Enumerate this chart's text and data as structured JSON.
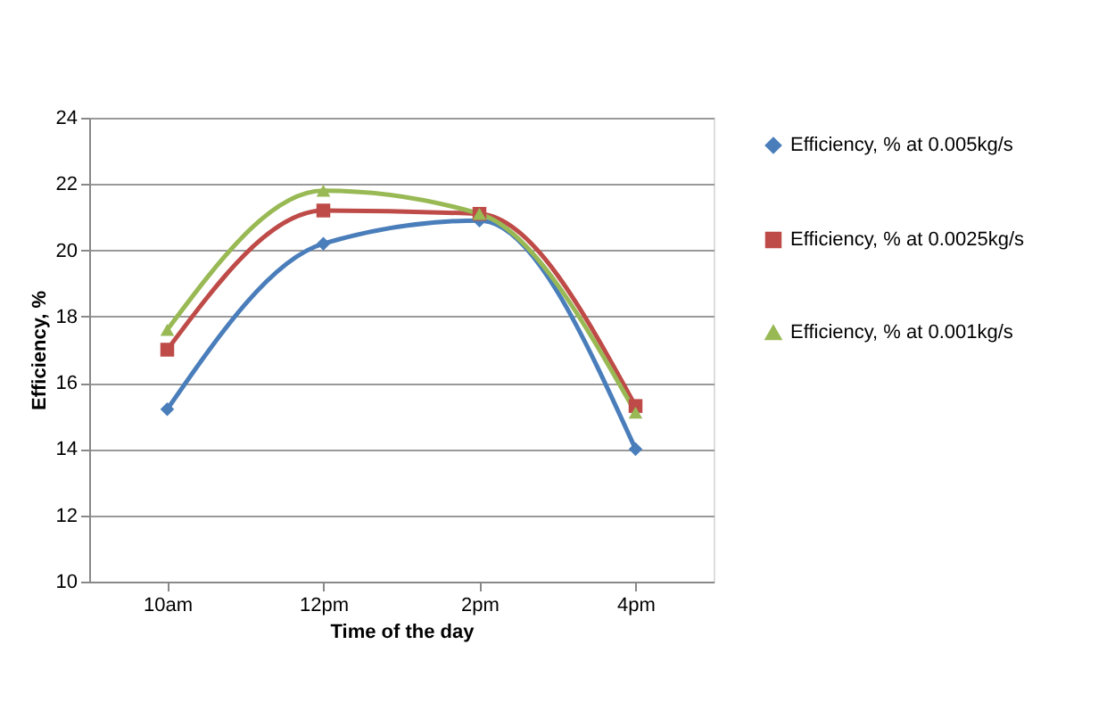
{
  "chart_data": {
    "type": "line",
    "xlabel": "Time of the day",
    "ylabel": "Efficiency, %",
    "categories": [
      "10am",
      "12pm",
      "2pm",
      "4pm"
    ],
    "series": [
      {
        "name": "Efficiency, % at 0.005kg/s",
        "color": "#4a7ebb",
        "marker": "diamond",
        "values": [
          15.2,
          20.2,
          20.9,
          14.0
        ]
      },
      {
        "name": "Efficiency, % at 0.0025kg/s",
        "color": "#be4b48",
        "marker": "square",
        "values": [
          17.0,
          21.2,
          21.1,
          15.3
        ]
      },
      {
        "name": "Efficiency, % at 0.001kg/s",
        "color": "#98b954",
        "marker": "triangle",
        "values": [
          17.6,
          21.8,
          21.1,
          15.1
        ]
      }
    ],
    "ylim": [
      10,
      24
    ],
    "yticks": [
      10,
      12,
      14,
      16,
      18,
      20,
      22,
      24
    ],
    "grid": "y",
    "legend": "right",
    "line_style": "solid"
  }
}
